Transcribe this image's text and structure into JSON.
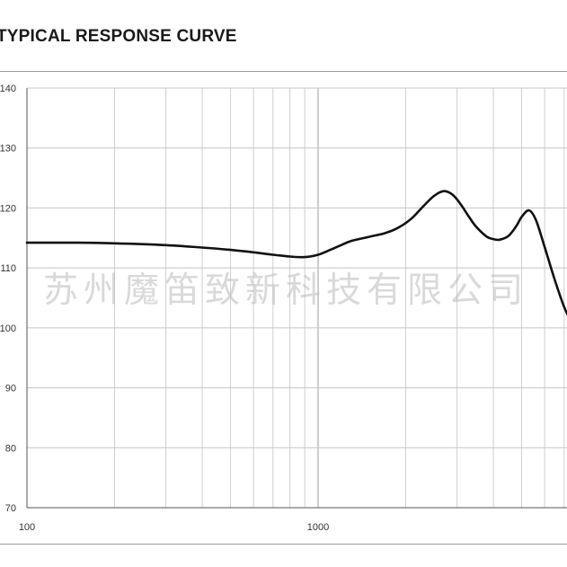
{
  "chart_data": {
    "type": "line",
    "title": "TYPICAL RESPONSE CURVE",
    "xlabel": "",
    "ylabel": "",
    "x_scale": "log",
    "xlim": [
      100,
      8000
    ],
    "ylim": [
      70,
      140
    ],
    "yticks": [
      70,
      80,
      90,
      100,
      110,
      120,
      130,
      140
    ],
    "xtick_labels": [
      {
        "value": 100,
        "label": "100"
      },
      {
        "value": 1000,
        "label": "1000"
      }
    ],
    "grid": true,
    "series": [
      {
        "color": "#111111",
        "x": [
          100,
          150,
          200,
          300,
          400,
          500,
          600,
          700,
          800,
          900,
          1000,
          1100,
          1200,
          1300,
          1500,
          1700,
          1900,
          2100,
          2300,
          2500,
          2700,
          2900,
          3100,
          3300,
          3500,
          3800,
          4000,
          4200,
          4500,
          4800,
          5000,
          5300,
          5600,
          6000,
          6500,
          7000,
          7500,
          8000
        ],
        "y": [
          114.2,
          114.2,
          114.1,
          113.8,
          113.4,
          113.0,
          112.6,
          112.2,
          111.9,
          111.8,
          112.2,
          113.0,
          113.8,
          114.5,
          115.2,
          115.8,
          116.8,
          118.3,
          120.3,
          122.0,
          122.8,
          122.2,
          120.5,
          118.5,
          116.8,
          115.2,
          114.8,
          114.7,
          115.3,
          117.0,
          118.5,
          119.6,
          118.0,
          113.5,
          108.0,
          103.5,
          100.5,
          98.5
        ]
      }
    ]
  },
  "watermark": "苏州魔笛致新科技有限公司"
}
